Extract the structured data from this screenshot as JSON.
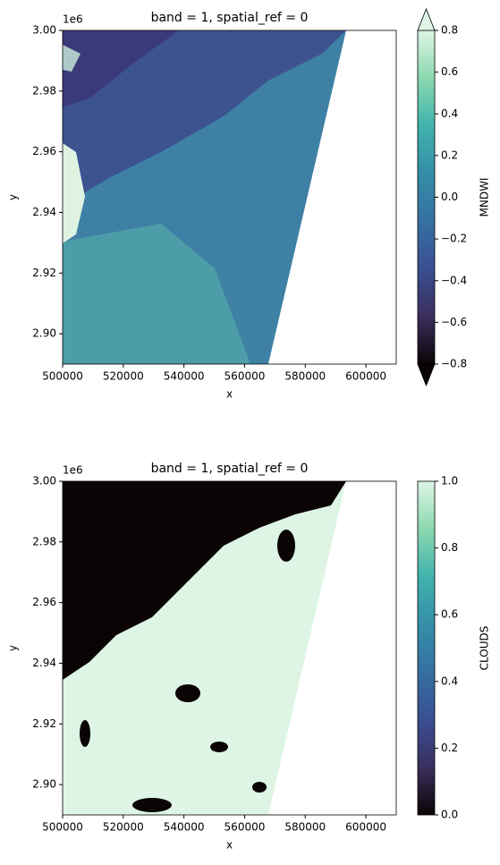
{
  "chart_data": [
    {
      "type": "image",
      "title": "band = 1, spatial_ref = 0",
      "xlabel": "x",
      "ylabel": "y",
      "y_offset_label": "1e6",
      "xlim": [
        500000,
        610000
      ],
      "ylim": [
        2890000,
        3000000
      ],
      "xticks": [
        500000,
        520000,
        540000,
        560000,
        580000,
        600000
      ],
      "yticks": [
        {
          "value": 2900000,
          "label": "2.90"
        },
        {
          "value": 2920000,
          "label": "2.92"
        },
        {
          "value": 2940000,
          "label": "2.94"
        },
        {
          "value": 2960000,
          "label": "2.96"
        },
        {
          "value": 2980000,
          "label": "2.98"
        },
        {
          "value": 3000000,
          "label": "3.00"
        }
      ],
      "colorbar": {
        "label": "MNDWI",
        "lim": [
          -0.8,
          0.8
        ],
        "extend": "both",
        "ticks": [
          {
            "value": -0.8,
            "label": "−0.8"
          },
          {
            "value": -0.6,
            "label": "−0.6"
          },
          {
            "value": -0.4,
            "label": "−0.4"
          },
          {
            "value": -0.2,
            "label": "−0.2"
          },
          {
            "value": 0,
            "label": "0.0"
          },
          0.2,
          0.4,
          0.6,
          0.8
        ],
        "colormap": [
          "#0b0405",
          "#3b2f5e",
          "#3a4f93",
          "#3570a1",
          "#358ea8",
          "#40b3ad",
          "#8bd8b0",
          "#def5e5"
        ]
      }
    },
    {
      "type": "image",
      "title": "band = 1, spatial_ref = 0",
      "xlabel": "x",
      "ylabel": "y",
      "y_offset_label": "1e6",
      "xlim": [
        500000,
        610000
      ],
      "ylim": [
        2890000,
        3000000
      ],
      "xticks": [
        500000,
        520000,
        540000,
        560000,
        580000,
        600000
      ],
      "yticks": [
        {
          "value": 2900000,
          "label": "2.90"
        },
        {
          "value": 2920000,
          "label": "2.92"
        },
        {
          "value": 2940000,
          "label": "2.94"
        },
        {
          "value": 2960000,
          "label": "2.96"
        },
        {
          "value": 2980000,
          "label": "2.98"
        },
        {
          "value": 3000000,
          "label": "3.00"
        }
      ],
      "colorbar": {
        "label": "CLOUDS",
        "lim": [
          0,
          1
        ],
        "extend": "neither",
        "ticks": [
          {
            "value": 0,
            "label": "0.0"
          },
          0.2,
          0.4,
          0.6,
          0.8,
          {
            "value": 1,
            "label": "1.0"
          }
        ],
        "colormap": [
          "#0b0405",
          "#3b2f5e",
          "#3a4f93",
          "#3570a1",
          "#358ea8",
          "#40b3ad",
          "#8bd8b0",
          "#def5e5"
        ]
      }
    }
  ]
}
